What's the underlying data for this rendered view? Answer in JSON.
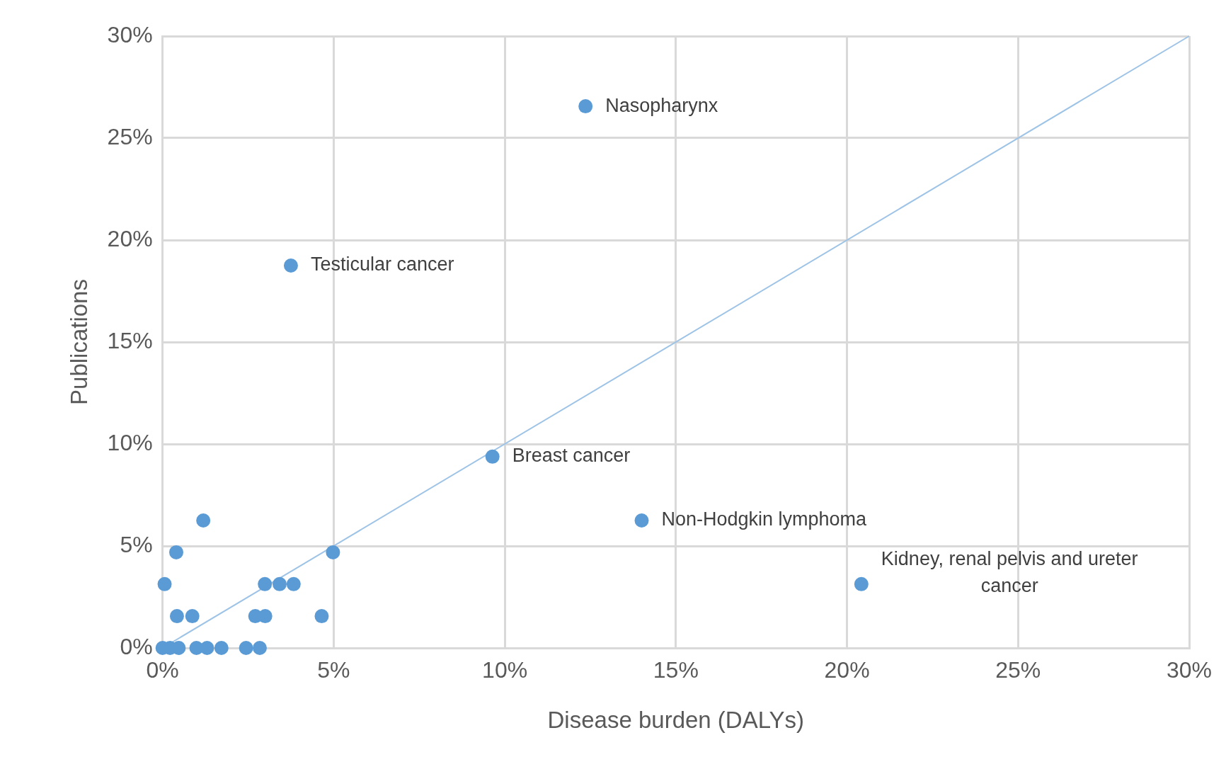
{
  "chart_data": {
    "type": "scatter",
    "xlabel": "Disease burden (DALYs)",
    "ylabel": "Publications",
    "xlim": [
      0,
      30
    ],
    "ylim": [
      0,
      30
    ],
    "xticks": [
      {
        "value": 0,
        "label": "0%"
      },
      {
        "value": 5,
        "label": "5%"
      },
      {
        "value": 10,
        "label": "10%"
      },
      {
        "value": 15,
        "label": "15%"
      },
      {
        "value": 20,
        "label": "20%"
      },
      {
        "value": 25,
        "label": "25%"
      },
      {
        "value": 30,
        "label": "30%"
      }
    ],
    "yticks": [
      {
        "value": 0,
        "label": "0%"
      },
      {
        "value": 5,
        "label": "5%"
      },
      {
        "value": 10,
        "label": "10%"
      },
      {
        "value": 15,
        "label": "15%"
      },
      {
        "value": 20,
        "label": "20%"
      },
      {
        "value": 25,
        "label": "25%"
      },
      {
        "value": 30,
        "label": "30%"
      }
    ],
    "grid": true,
    "legend": false,
    "marker": "circle",
    "series": [
      {
        "type": "scatter",
        "color": "#5b9bd5",
        "x": [
          12.36,
          3.75,
          9.64,
          14.0,
          20.42,
          1.19,
          0.4,
          0.06,
          2.99,
          3.42,
          3.83,
          4.98,
          0.42,
          0.87,
          2.71,
          3.0,
          4.65,
          0.0,
          0.22,
          0.47,
          0.99,
          1.3,
          1.72,
          2.44,
          2.84
        ],
        "values": [
          26.56,
          18.75,
          9.38,
          6.25,
          3.13,
          6.25,
          4.69,
          3.13,
          3.13,
          3.13,
          3.13,
          4.69,
          1.56,
          1.56,
          1.56,
          1.56,
          1.56,
          0,
          0,
          0,
          0,
          0,
          0,
          0,
          0
        ]
      },
      {
        "type": "line",
        "color": "#9dc3e6",
        "marker": "none",
        "line_style": "solid",
        "x": [
          0,
          30
        ],
        "values": [
          0,
          30
        ]
      }
    ],
    "annotations": [
      {
        "text": "Nasopharynx",
        "x": 12.36,
        "y": 26.56
      },
      {
        "text": "Testicular cancer",
        "x": 3.75,
        "y": 18.75
      },
      {
        "text": "Breast cancer",
        "x": 9.64,
        "y": 9.38
      },
      {
        "text": "Non-Hodgkin lymphoma",
        "x": 14.0,
        "y": 6.25
      },
      {
        "text": "Kidney, renal pelvis and ureter cancer",
        "x": 20.42,
        "y": 3.13
      }
    ]
  }
}
